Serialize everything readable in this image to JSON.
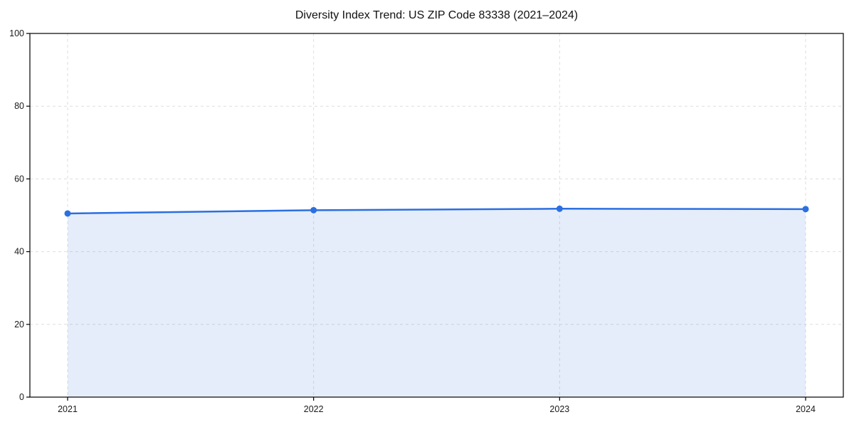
{
  "figure": {
    "title": "Diversity Index Trend: US ZIP Code 83338 (2021–2024)"
  },
  "chart_data": {
    "type": "line",
    "title": "Diversity Index Trend: US ZIP Code 83338 (2021–2024)",
    "categories": [
      "2021",
      "2022",
      "2023",
      "2024"
    ],
    "series": [
      {
        "name": "Diversity Index",
        "values": [
          50.5,
          51.4,
          51.8,
          51.7
        ]
      }
    ],
    "xlabel": "",
    "ylabel": "",
    "ylim": [
      0,
      100
    ],
    "yticks": [
      0,
      20,
      40,
      60,
      80,
      100
    ],
    "grid": true,
    "grid_style": "dashed",
    "legend": "none",
    "area_fill": true,
    "marker": "circle",
    "colors": {
      "line": "#2b6fe0",
      "fill": "#2b6fe0",
      "fill_opacity": 0.12,
      "grid": "#dedede",
      "axis": "#000000",
      "text": "#1a1a1a",
      "background": "#ffffff"
    }
  }
}
